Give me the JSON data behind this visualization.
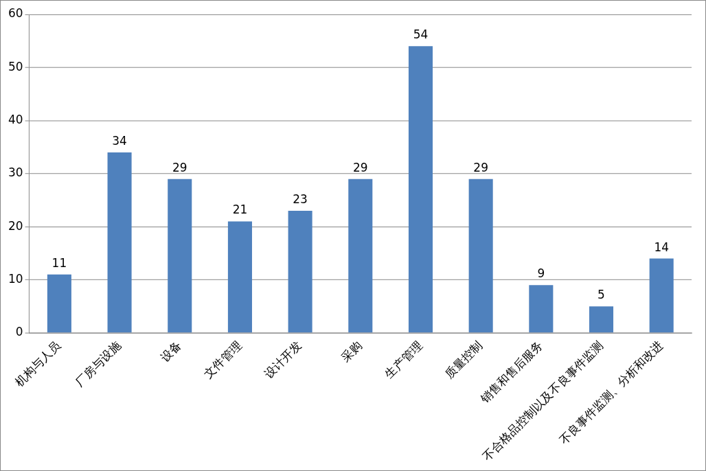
{
  "chart_data": {
    "type": "bar",
    "categories": [
      "机构与人员",
      "厂房与设施",
      "设备",
      "文件管理",
      "设计开发",
      "采购",
      "生产管理",
      "质量控制",
      "销售和售后服务",
      "不合格品控制以及不良事件监测",
      "不良事件监测、分析和改进"
    ],
    "values": [
      11,
      34,
      29,
      21,
      23,
      29,
      54,
      29,
      9,
      5,
      14
    ],
    "color": "#4f81bd",
    "ylim": [
      0,
      60
    ],
    "yticks": [
      0,
      10,
      20,
      30,
      40,
      50,
      60
    ],
    "grid": "y",
    "data_labels": true
  }
}
